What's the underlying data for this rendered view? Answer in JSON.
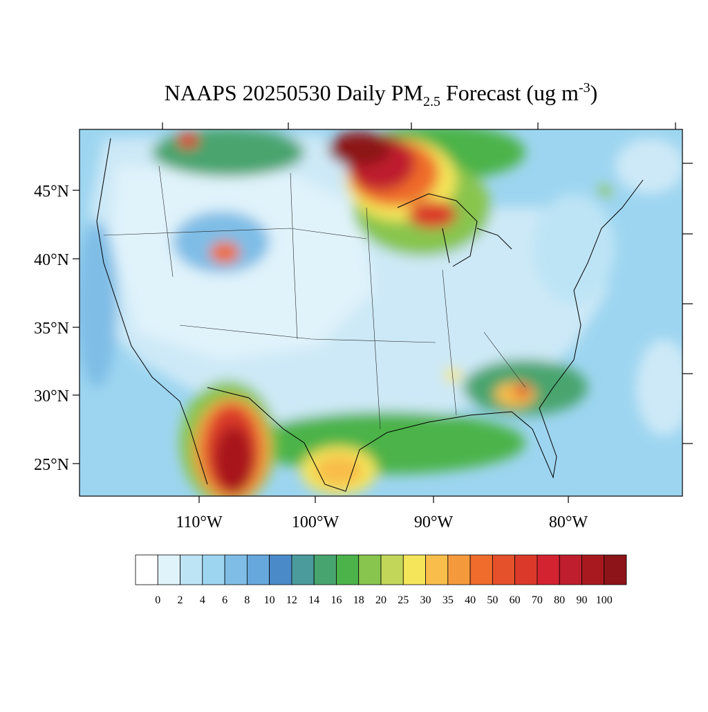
{
  "title": {
    "main": "NAAPS 20250530 Daily PM",
    "sub": "2.5",
    "mid": " Forecast (ug m",
    "sup": "-3",
    "end": ")"
  },
  "map": {
    "lat_labels": [
      "45°N",
      "40°N",
      "35°N",
      "30°N",
      "25°N"
    ],
    "lon_labels": [
      "110°W",
      "100°W",
      "90°W",
      "80°W"
    ]
  },
  "colorbar": {
    "levels": [
      "0",
      "2",
      "4",
      "6",
      "8",
      "10",
      "12",
      "14",
      "16",
      "18",
      "20",
      "25",
      "30",
      "35",
      "40",
      "50",
      "60",
      "70",
      "80",
      "90",
      "100"
    ],
    "colors": [
      "#ffffff",
      "#e0f3fb",
      "#bde4f5",
      "#9dd5f0",
      "#7fbde6",
      "#66a8dc",
      "#4b8ac8",
      "#4b9a9c",
      "#48a46e",
      "#4cb34a",
      "#88c54e",
      "#c2d65a",
      "#f5e55a",
      "#f8bd4a",
      "#f59a3c",
      "#ef6c2c",
      "#e5512a",
      "#db3a2a",
      "#d42330",
      "#be1e2d",
      "#a8191f",
      "#8d1519"
    ]
  }
}
